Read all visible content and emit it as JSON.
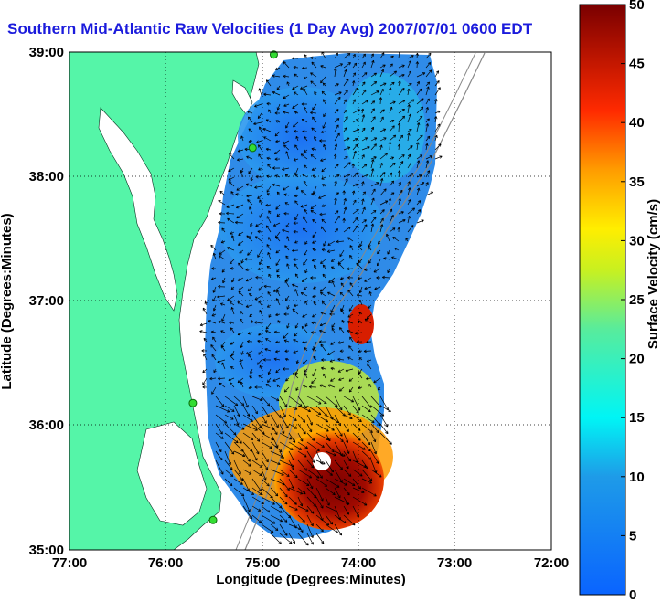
{
  "title": "Southern Mid-Atlantic Raw Velocities (1 Day Avg) 2007/07/01 0600 EDT",
  "x_axis": {
    "label": "Longitude (Degrees:Minutes)",
    "ticks": [
      "77:00",
      "76:00",
      "75:00",
      "74:00",
      "73:00",
      "72:00"
    ]
  },
  "y_axis": {
    "label": "Latitude (Degrees:Minutes)",
    "ticks": [
      "39:00",
      "38:00",
      "37:00",
      "36:00",
      "35:00"
    ]
  },
  "colorbar": {
    "label": "Surface Velocity (cm/s)",
    "ticks": [
      "50",
      "45",
      "40",
      "35",
      "30",
      "25",
      "20",
      "15",
      "10",
      "5",
      "0"
    ],
    "min": 0,
    "max": 50
  },
  "colors": {
    "land": "#55f5a8",
    "title": "#1b1bdc",
    "low_speed": "#1a6ef5",
    "high_speed": "#8b0000"
  },
  "map": {
    "extent": {
      "lon": [
        -77,
        -72
      ],
      "lat": [
        35,
        39
      ]
    },
    "grid": true,
    "stations": [
      {
        "name": "station-1",
        "lon": -74.88,
        "lat": 38.98
      },
      {
        "name": "station-2",
        "lon": -75.1,
        "lat": 38.23
      },
      {
        "name": "station-3",
        "lon": -75.72,
        "lat": 36.18
      },
      {
        "name": "station-4",
        "lon": -75.51,
        "lat": 35.24
      }
    ]
  }
}
